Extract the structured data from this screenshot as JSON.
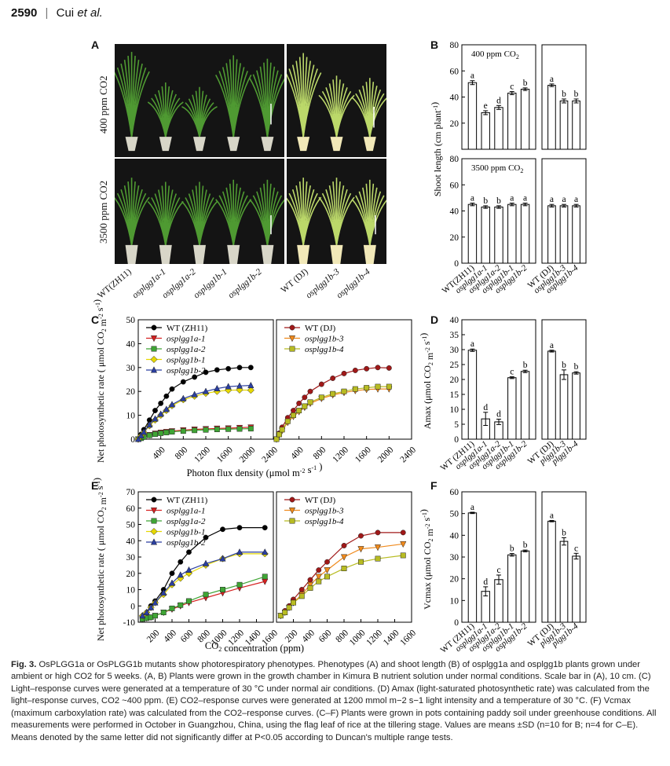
{
  "header": {
    "page_number": "2590",
    "separator": "|",
    "authors_prefix": "Cui ",
    "authors_etal": "et al."
  },
  "panels": {
    "A": {
      "letter": "A",
      "row_labels": [
        "400 ppm CO2",
        "3500 ppm CO2"
      ],
      "categories": [
        "WT(ZH11)",
        "osplgg1a-1",
        "osplgg1a-2",
        "osplgg1b-1",
        "osplgg1b-2",
        "WT (DJ)",
        "osplgg1b-3",
        "osplgg1b-4"
      ]
    },
    "B": {
      "letter": "B",
      "ylabel": "Shoot length  (cm plant-1)",
      "top_label": "400 ppm CO2",
      "bottom_label": "3500 ppm CO2"
    },
    "C": {
      "letter": "C",
      "xlabel": "Photon flux density (μmol m-2 s-1 )",
      "ylabel": "Net photosynthetic rate ( μmol CO2 m-2 s-1)"
    },
    "D": {
      "letter": "D",
      "ylabel": "Amax (μmol CO2 m-2 s-1)"
    },
    "E": {
      "letter": "E",
      "xlabel": "CO2 concentration (ppm)",
      "ylabel": "Net photosynthetic rate ( μmol CO2 m-2 s-1)"
    },
    "F": {
      "letter": "F",
      "ylabel": "Vcmax (μmol CO2 m-2 s-1)"
    }
  },
  "chart_data": [
    {
      "id": "B-top-left",
      "type": "bar",
      "title": "400 ppm CO2",
      "ylim": [
        0,
        80
      ],
      "categories": [
        "WT(ZH11)",
        "osplgg1a-1",
        "osplgg1a-2",
        "osplgg1b-1",
        "osplgg1b-2"
      ],
      "values": [
        51,
        28,
        32,
        43,
        46
      ],
      "errors": [
        1.5,
        1.5,
        1.5,
        1.2,
        1
      ],
      "letters": [
        "a",
        "e",
        "d",
        "c",
        "b"
      ]
    },
    {
      "id": "B-top-right",
      "type": "bar",
      "ylim": [
        0,
        80
      ],
      "categories": [
        "WT (DJ)",
        "osplgg1b-3",
        "osplgg1b-4"
      ],
      "values": [
        49,
        37,
        37
      ],
      "errors": [
        1,
        1.5,
        1.5
      ],
      "letters": [
        "a",
        "b",
        "b"
      ]
    },
    {
      "id": "B-bottom-left",
      "type": "bar",
      "title": "3500 ppm CO2",
      "ylim": [
        0,
        80
      ],
      "categories": [
        "WT(ZH11)",
        "osplgg1a-1",
        "osplgg1a-2",
        "osplgg1b-1",
        "osplgg1b-2"
      ],
      "values": [
        45,
        43,
        43,
        45,
        45
      ],
      "errors": [
        1,
        1,
        1,
        1,
        1
      ],
      "letters": [
        "a",
        "b",
        "b",
        "a",
        "a"
      ]
    },
    {
      "id": "B-bottom-right",
      "type": "bar",
      "ylim": [
        0,
        80
      ],
      "categories": [
        "WT (DJ)",
        "osplgg1b-3",
        "osplgg1b-4"
      ],
      "values": [
        44,
        44,
        44
      ],
      "errors": [
        1,
        1,
        1
      ],
      "letters": [
        "a",
        "a",
        "a"
      ]
    },
    {
      "id": "C-left",
      "type": "line",
      "xlim": [
        0,
        2400
      ],
      "ylim": [
        0,
        50
      ],
      "x": [
        0,
        50,
        100,
        200,
        300,
        400,
        500,
        600,
        800,
        1000,
        1200,
        1400,
        1600,
        1800,
        2000
      ],
      "series": [
        {
          "name": "WT (ZH11)",
          "color": "#000000",
          "marker": "circle",
          "values": [
            0,
            2,
            4,
            8,
            12,
            15,
            18,
            21,
            24,
            26,
            28,
            29,
            29.5,
            30,
            30
          ]
        },
        {
          "name": "osplgg1a-1",
          "color": "#d62020",
          "marker": "triangle-down",
          "values": [
            0,
            0.5,
            1,
            1.8,
            2.4,
            2.8,
            3.1,
            3.4,
            3.8,
            4.1,
            4.3,
            4.5,
            4.6,
            4.8,
            5
          ]
        },
        {
          "name": "osplgg1a-2",
          "color": "#3fa535",
          "marker": "square",
          "values": [
            0,
            0.4,
            0.9,
            1.6,
            2.1,
            2.5,
            2.8,
            3.1,
            3.4,
            3.7,
            3.9,
            4.1,
            4.2,
            4.3,
            4.4
          ]
        },
        {
          "name": "osplgg1b-1",
          "color": "#e6d800",
          "marker": "diamond",
          "values": [
            0,
            1.4,
            2.8,
            5.6,
            8,
            10,
            12,
            14,
            16.5,
            18,
            19.2,
            20,
            20.5,
            20.6,
            20.5
          ]
        },
        {
          "name": "osplgg1b-2",
          "color": "#2b3fa0",
          "marker": "triangle",
          "values": [
            0,
            1.5,
            3,
            6,
            8.5,
            10.5,
            12.5,
            14.5,
            17,
            18.7,
            20,
            21.2,
            22,
            22.3,
            22.5
          ]
        }
      ]
    },
    {
      "id": "C-right",
      "type": "line",
      "xlim": [
        0,
        2400
      ],
      "ylim": [
        0,
        50
      ],
      "x": [
        0,
        50,
        100,
        200,
        300,
        400,
        500,
        600,
        800,
        1000,
        1200,
        1400,
        1600,
        1800,
        2000
      ],
      "series": [
        {
          "name": "WT (DJ)",
          "color": "#a01818",
          "marker": "circle",
          "values": [
            0,
            2.5,
            5,
            9,
            12,
            15,
            17.5,
            20,
            23,
            25.5,
            27.5,
            28.8,
            29.5,
            30,
            29.8
          ]
        },
        {
          "name": "osplgg1b-3",
          "color": "#f08a1c",
          "marker": "triangle-down",
          "values": [
            0,
            1.8,
            3.6,
            7,
            9.5,
            11.5,
            13.3,
            15,
            17,
            18.5,
            19.5,
            20.3,
            20.8,
            21,
            21
          ]
        },
        {
          "name": "osplgg1b-4",
          "color": "#b8bc22",
          "marker": "square",
          "values": [
            0,
            2,
            4,
            7.5,
            10,
            12,
            13.8,
            15.5,
            17.5,
            19,
            20,
            21,
            21.5,
            22,
            22
          ]
        }
      ]
    },
    {
      "id": "D-left",
      "type": "bar",
      "ylim": [
        0,
        40
      ],
      "categories": [
        "WT (ZH11)",
        "osplgg1a-1",
        "osplgg1a-2",
        "osplgg1b-1",
        "osplgg1b-2"
      ],
      "values": [
        29.8,
        6.8,
        5.8,
        20.6,
        22.7
      ],
      "errors": [
        0.4,
        2.2,
        0.9,
        0.3,
        0.4
      ],
      "letters": [
        "a",
        "d",
        "d",
        "c",
        "b"
      ]
    },
    {
      "id": "D-right",
      "type": "bar",
      "ylim": [
        0,
        40
      ],
      "categories": [
        "WT (DJ)",
        "plgg1b-3",
        "plgg1b-4"
      ],
      "values": [
        29.5,
        21.6,
        22.2
      ],
      "errors": [
        0.3,
        1.6,
        0.4
      ],
      "letters": [
        "a",
        "b",
        "b"
      ]
    },
    {
      "id": "E-left",
      "type": "line",
      "xlim": [
        0,
        1600
      ],
      "ylim": [
        -10,
        70
      ],
      "x": [
        50,
        100,
        150,
        200,
        300,
        400,
        500,
        600,
        800,
        1000,
        1200,
        1500
      ],
      "series": [
        {
          "name": "WT (ZH11)",
          "color": "#000000",
          "marker": "circle",
          "values": [
            -7,
            -4,
            0,
            3,
            10,
            20,
            27,
            33,
            42,
            47,
            48,
            48
          ]
        },
        {
          "name": "osplgg1a-1",
          "color": "#d62020",
          "marker": "triangle-down",
          "values": [
            -8,
            -7.5,
            -7,
            -6,
            -4,
            -2,
            0,
            2,
            5,
            8,
            11,
            15
          ]
        },
        {
          "name": "osplgg1a-2",
          "color": "#3fa535",
          "marker": "square",
          "values": [
            -8,
            -7.5,
            -7,
            -6,
            -4,
            -1.5,
            0.5,
            3,
            7,
            10,
            13,
            18
          ]
        },
        {
          "name": "osplgg1b-1",
          "color": "#e6d800",
          "marker": "diamond",
          "values": [
            -6,
            -4,
            -1,
            2,
            7,
            13,
            17,
            20,
            25,
            29,
            32,
            32
          ]
        },
        {
          "name": "osplgg1b-2",
          "color": "#2b3fa0",
          "marker": "triangle",
          "values": [
            -6,
            -4,
            -1,
            2,
            8,
            14,
            19,
            22,
            26,
            29,
            33,
            33
          ]
        }
      ]
    },
    {
      "id": "E-right",
      "type": "line",
      "xlim": [
        0,
        1600
      ],
      "ylim": [
        -10,
        70
      ],
      "x": [
        50,
        100,
        150,
        200,
        300,
        400,
        500,
        600,
        800,
        1000,
        1200,
        1500
      ],
      "series": [
        {
          "name": "WT (DJ)",
          "color": "#a01818",
          "marker": "circle",
          "values": [
            -6,
            -3,
            0,
            4,
            10,
            16,
            22,
            27,
            37,
            43,
            45,
            45
          ]
        },
        {
          "name": "osplgg1b-3",
          "color": "#f08a1c",
          "marker": "triangle-down",
          "values": [
            -6,
            -4,
            -1,
            2,
            7,
            13,
            18,
            22,
            30,
            35,
            36,
            38
          ]
        },
        {
          "name": "osplgg1b-4",
          "color": "#b8bc22",
          "marker": "square",
          "values": [
            -6,
            -4,
            -1,
            2,
            6,
            11,
            15,
            18,
            23,
            27,
            29,
            31
          ]
        }
      ]
    },
    {
      "id": "F-left",
      "type": "bar",
      "ylim": [
        0,
        60
      ],
      "categories": [
        "WT (ZH11)",
        "osplgg1a-1",
        "osplgg1a-2",
        "osplgg1b-1",
        "osplgg1b-2"
      ],
      "values": [
        50.3,
        14.2,
        19.6,
        31,
        32.8
      ],
      "errors": [
        0.3,
        2.1,
        2.1,
        0.6,
        0.4
      ],
      "letters": [
        "a",
        "d",
        "c",
        "b",
        "b"
      ]
    },
    {
      "id": "F-right",
      "type": "bar",
      "ylim": [
        0,
        60
      ],
      "categories": [
        "WT (DJ)",
        "plgg1b-3",
        "plgg1b-4"
      ],
      "values": [
        46.5,
        37.2,
        30.4
      ],
      "errors": [
        0.3,
        1.7,
        1.3
      ],
      "letters": [
        "a",
        "b",
        "c"
      ]
    }
  ],
  "caption": {
    "label": "Fig. 3.",
    "text": "OsPLGG1a or OsPLGG1b mutants show photorespiratory phenotypes. Phenotypes (A) and shoot length (B) of osplgg1a and osplgg1b plants grown under ambient or high CO2 for 5 weeks. (A, B) Plants were grown in the growth chamber in Kimura B nutrient solution under normal conditions. Scale bar in (A), 10 cm. (C) Light–response curves were generated at a temperature of 30 °C under normal air conditions. (D) Amax (light-saturated photosynthetic rate) was calculated from the light–response curves, CO2 ~400 ppm. (E) CO2–response curves were generated at 1200 mmol m−2 s−1 light intensity and a temperature of 30 °C. (F) Vcmax (maximum carboxylation rate) was calculated from the CO2–response curves. (C–F) Plants were grown in pots containing paddy soil under greenhouse conditions. All measurements were performed in October in Guangzhou, China, using the flag leaf of rice at the tillering stage. Values are means ±SD (n=10 for B; n=4 for C–E). Means denoted by the same letter did not significantly differ at P<0.05 according to Duncan's multiple range tests."
  }
}
